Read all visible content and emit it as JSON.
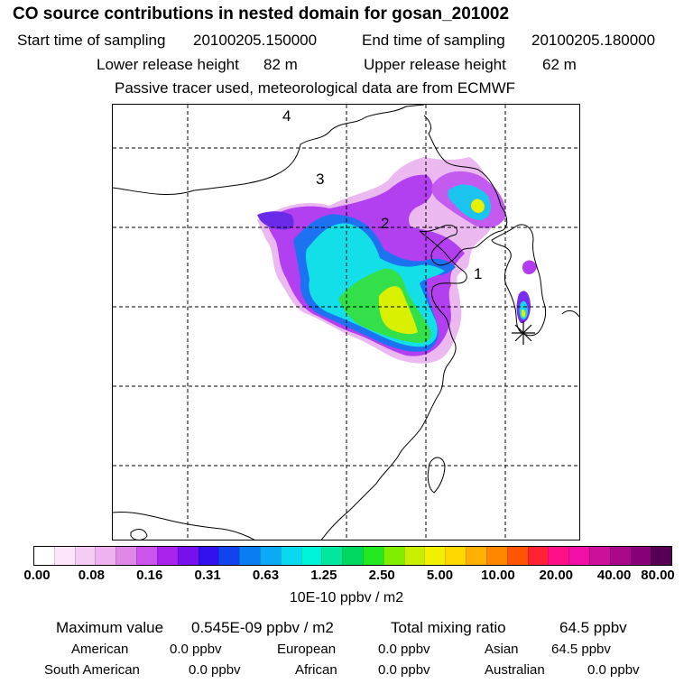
{
  "header": {
    "title": "CO  source contributions in nested domain for gosan_201002",
    "start_label": "Start time of sampling",
    "start_value": "20100205.150000",
    "end_label": "End time of sampling",
    "end_value": "20100205.180000",
    "lower_label": "Lower release height",
    "lower_value": "82 m",
    "upper_label": "Upper release height",
    "upper_value": "62 m",
    "tracer_note": "Passive tracer used, meteorological data are from ECMWF"
  },
  "map": {
    "trajectory_labels": [
      "1",
      "2",
      "3",
      "4"
    ],
    "receptor_marker": "gosan-receptor"
  },
  "colorbar": {
    "colors": [
      "#ffffff",
      "#fbe6fb",
      "#f5ccf5",
      "#eeb3ef",
      "#e088e8",
      "#cc55ee",
      "#aa22ee",
      "#7710ee",
      "#3311ee",
      "#1144ee",
      "#0b7df2",
      "#0aaaf5",
      "#0ad8f0",
      "#00f5d8",
      "#00e8a0",
      "#00d860",
      "#22e822",
      "#80ee00",
      "#c8ee00",
      "#f0f000",
      "#ffd800",
      "#ffb000",
      "#ff8800",
      "#ff5500",
      "#ff2233",
      "#ff1088",
      "#f010a8",
      "#cc1099",
      "#aa0888",
      "#880077",
      "#550055"
    ],
    "ticks": [
      "0.00",
      "0.08",
      "0.16",
      "0.31",
      "0.63",
      "1.25",
      "2.50",
      "5.00",
      "10.00",
      "20.00",
      "40.00",
      "80.00"
    ],
    "unit": "10E-10 ppbv / m2"
  },
  "stats": {
    "max_label": "Maximum value",
    "max_value": "0.545E-09 ppbv / m2",
    "total_label": "Total mixing ratio",
    "total_value": "64.5 ppbv",
    "contributions": [
      {
        "name": "American",
        "value": "0.0 ppbv"
      },
      {
        "name": "European",
        "value": "0.0 ppbv"
      },
      {
        "name": "Asian",
        "value": "64.5 ppbv"
      },
      {
        "name": "South American",
        "value": "0.0 ppbv"
      },
      {
        "name": "African",
        "value": "0.0 ppbv"
      },
      {
        "name": "Australian",
        "value": "0.0 ppbv"
      }
    ]
  }
}
